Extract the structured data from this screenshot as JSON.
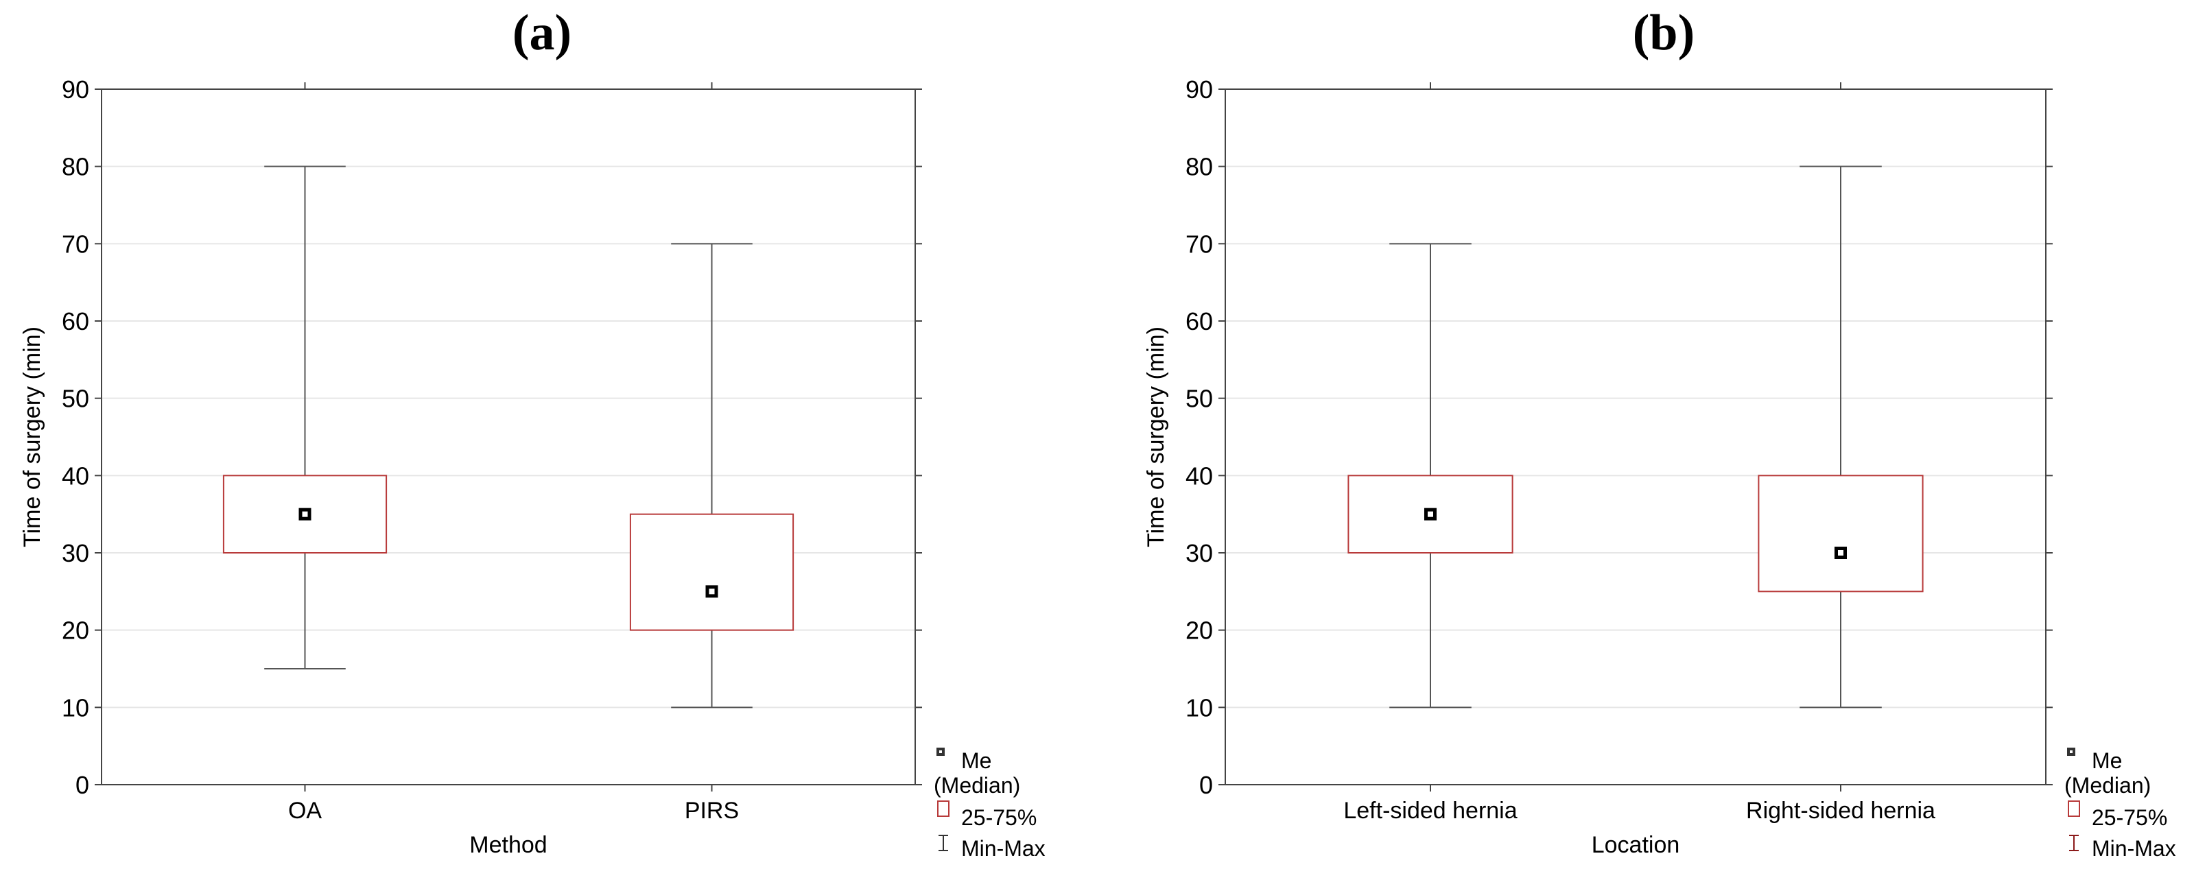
{
  "chart_data": [
    {
      "type": "box",
      "panel_label": "(a)",
      "title": "",
      "xlabel": "Method",
      "ylabel": "Time of surgery (min)",
      "ylim": [
        0,
        90
      ],
      "y_ticks": [
        0,
        10,
        20,
        30,
        40,
        50,
        60,
        70,
        80,
        90
      ],
      "grid": true,
      "legend_position": "bottom-right",
      "legend": [
        {
          "key": "median",
          "label": "Me (Median)"
        },
        {
          "key": "iqr",
          "label": "25-75%"
        },
        {
          "key": "range",
          "label": "Min-Max"
        }
      ],
      "categories": [
        "OA",
        "PIRS"
      ],
      "boxes": [
        {
          "category": "OA",
          "min": 15,
          "q1": 30,
          "median": 35,
          "q3": 40,
          "max": 80
        },
        {
          "category": "PIRS",
          "min": 10,
          "q1": 20,
          "median": 25,
          "q3": 35,
          "max": 70
        }
      ]
    },
    {
      "type": "box",
      "panel_label": "(b)",
      "title": "",
      "xlabel": "Location",
      "ylabel": "Time of surgery (min)",
      "ylim": [
        0,
        90
      ],
      "y_ticks": [
        0,
        10,
        20,
        30,
        40,
        50,
        60,
        70,
        80,
        90
      ],
      "grid": true,
      "legend_position": "bottom-right",
      "legend": [
        {
          "key": "median",
          "label": "Me (Median)"
        },
        {
          "key": "iqr",
          "label": "25-75%"
        },
        {
          "key": "range",
          "label": "Min-Max"
        }
      ],
      "categories": [
        "Left-sided hernia",
        "Right-sided hernia"
      ],
      "boxes": [
        {
          "category": "Left-sided hernia",
          "min": 10,
          "q1": 30,
          "median": 35,
          "q3": 40,
          "max": 70
        },
        {
          "category": "Right-sided hernia",
          "min": 10,
          "q1": 25,
          "median": 30,
          "q3": 40,
          "max": 80
        }
      ]
    }
  ],
  "colors": {
    "box_stroke": "#b83a3a",
    "whisker": "#555555",
    "grid": "#e6e6e6",
    "axis": "#444444",
    "median_fill": "#000000",
    "range_legend_panel_a": "#333333",
    "range_legend_panel_b": "#8b1a1a"
  }
}
